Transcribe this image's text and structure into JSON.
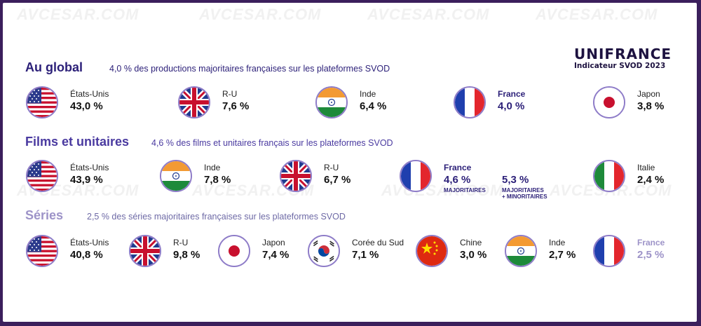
{
  "watermark": "AVCESAR.COM",
  "logo": {
    "name": "UNIFRANCE",
    "subtitle": "Indicateur SVOD 2023"
  },
  "sections": [
    {
      "title": "Au global",
      "desc": "4,0 % des productions majoritaires françaises sur les plateformes SVOD",
      "title_color": "#2b1f78"
    },
    {
      "title": "Films et unitaires",
      "desc": "4,6 % des films et unitaires français sur les plateformes SVOD",
      "title_color": "#4a3aa0"
    },
    {
      "title": "Séries",
      "desc": "2,5 % des séries majoritaires françaises sur les plateformes SVOD",
      "title_color": "#9d93c8"
    }
  ],
  "global": [
    {
      "country": "États-Unis",
      "value": "43,0 %",
      "flag": "us"
    },
    {
      "country": "R-U",
      "value": "7,6 %",
      "flag": "uk"
    },
    {
      "country": "Inde",
      "value": "6,4 %",
      "flag": "in"
    },
    {
      "country": "France",
      "value": "4,0 %",
      "flag": "fr"
    },
    {
      "country": "Japon",
      "value": "3,8 %",
      "flag": "jp"
    }
  ],
  "films": [
    {
      "country": "États-Unis",
      "value": "43,9 %",
      "flag": "us"
    },
    {
      "country": "Inde",
      "value": "7,8 %",
      "flag": "in"
    },
    {
      "country": "R-U",
      "value": "6,7 %",
      "flag": "uk"
    },
    {
      "country": "France",
      "value": "4,6 %",
      "flag": "fr",
      "note": "MAJORITAIRES",
      "extra_value": "5,3 %",
      "extra_note_1": "MAJORITAIRES",
      "extra_note_2": "+ MINORITAIRES"
    },
    {
      "country": "Italie",
      "value": "2,4 %",
      "flag": "it"
    }
  ],
  "series": [
    {
      "country": "États-Unis",
      "value": "40,8 %",
      "flag": "us"
    },
    {
      "country": "R-U",
      "value": "9,8 %",
      "flag": "uk"
    },
    {
      "country": "Japon",
      "value": "7,4 %",
      "flag": "jp"
    },
    {
      "country": "Corée du Sud",
      "value": "7,1 %",
      "flag": "kr"
    },
    {
      "country": "Chine",
      "value": "3,0 %",
      "flag": "cn"
    },
    {
      "country": "Inde",
      "value": "2,7 %",
      "flag": "in"
    },
    {
      "country": "France",
      "value": "2,5 %",
      "flag": "fr"
    }
  ],
  "colors": {
    "frame": "#3b1f5c",
    "accent_dark": "#2b1f78",
    "accent_light": "#9d93c8",
    "flag_border": "#8e7cc8"
  }
}
